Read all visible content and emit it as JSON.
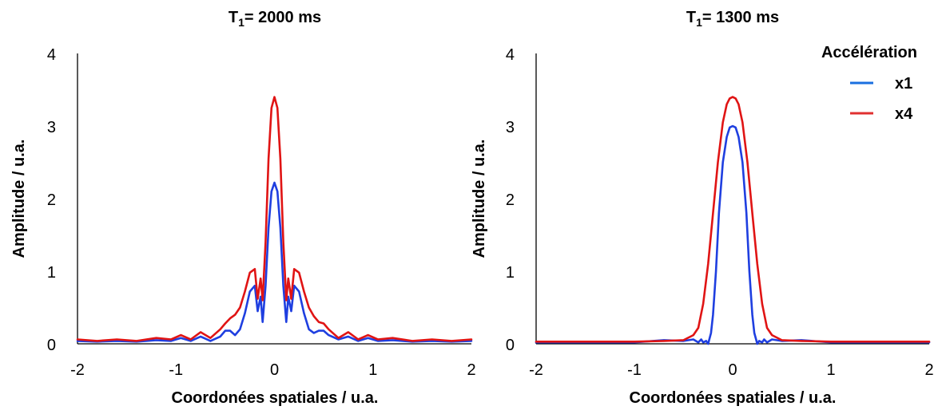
{
  "chart_data": [
    {
      "type": "line",
      "title_main": "T",
      "title_sub": "1",
      "title_rest": "= 2000 ms",
      "xlabel": "Coordonées spatiales / u.a.",
      "ylabel": "Amplitude / u.a.",
      "xlim": [
        -2,
        2
      ],
      "ylim": [
        0,
        4
      ],
      "xticks": [
        "-2",
        "-1",
        "0",
        "1",
        "2"
      ],
      "yticks": [
        "0",
        "1",
        "2",
        "3",
        "4"
      ],
      "grid": false,
      "series": [
        {
          "name": "x1",
          "color": "#1f3fe0",
          "x": [
            -2.0,
            -1.8,
            -1.6,
            -1.4,
            -1.2,
            -1.05,
            -0.95,
            -0.85,
            -0.75,
            -0.65,
            -0.55,
            -0.5,
            -0.45,
            -0.4,
            -0.35,
            -0.3,
            -0.25,
            -0.2,
            -0.17,
            -0.14,
            -0.12,
            -0.09,
            -0.06,
            -0.03,
            0.0,
            0.03,
            0.06,
            0.09,
            0.12,
            0.14,
            0.17,
            0.2,
            0.25,
            0.3,
            0.35,
            0.4,
            0.45,
            0.5,
            0.55,
            0.65,
            0.75,
            0.85,
            0.95,
            1.05,
            1.2,
            1.4,
            1.6,
            1.8,
            2.0
          ],
          "y": [
            0.04,
            0.03,
            0.04,
            0.03,
            0.05,
            0.04,
            0.08,
            0.04,
            0.1,
            0.04,
            0.1,
            0.18,
            0.18,
            0.12,
            0.2,
            0.42,
            0.72,
            0.8,
            0.45,
            0.65,
            0.3,
            0.8,
            1.6,
            2.1,
            2.22,
            2.1,
            1.6,
            0.8,
            0.3,
            0.65,
            0.45,
            0.8,
            0.72,
            0.42,
            0.2,
            0.15,
            0.18,
            0.18,
            0.12,
            0.06,
            0.1,
            0.04,
            0.08,
            0.04,
            0.05,
            0.03,
            0.04,
            0.03,
            0.04
          ]
        },
        {
          "name": "x4",
          "color": "#e01414",
          "x": [
            -2.0,
            -1.8,
            -1.6,
            -1.4,
            -1.2,
            -1.05,
            -0.95,
            -0.85,
            -0.75,
            -0.65,
            -0.55,
            -0.5,
            -0.45,
            -0.4,
            -0.35,
            -0.3,
            -0.25,
            -0.2,
            -0.17,
            -0.14,
            -0.12,
            -0.09,
            -0.06,
            -0.03,
            0.0,
            0.03,
            0.06,
            0.09,
            0.12,
            0.14,
            0.17,
            0.2,
            0.25,
            0.3,
            0.35,
            0.4,
            0.45,
            0.5,
            0.55,
            0.65,
            0.75,
            0.85,
            0.95,
            1.05,
            1.2,
            1.4,
            1.6,
            1.8,
            2.0
          ],
          "y": [
            0.06,
            0.04,
            0.06,
            0.04,
            0.08,
            0.06,
            0.12,
            0.06,
            0.16,
            0.08,
            0.2,
            0.28,
            0.35,
            0.4,
            0.5,
            0.72,
            0.98,
            1.03,
            0.62,
            0.9,
            0.6,
            1.4,
            2.55,
            3.25,
            3.4,
            3.25,
            2.55,
            1.4,
            0.6,
            0.9,
            0.62,
            1.03,
            0.98,
            0.72,
            0.5,
            0.38,
            0.3,
            0.28,
            0.2,
            0.08,
            0.16,
            0.06,
            0.12,
            0.06,
            0.08,
            0.04,
            0.06,
            0.04,
            0.06
          ]
        }
      ]
    },
    {
      "type": "line",
      "title_main": "T",
      "title_sub": "1",
      "title_rest": "= 1300 ms",
      "xlabel": "Coordonées spatiales / u.a.",
      "ylabel": "Amplitude / u.a.",
      "xlim": [
        -2,
        2
      ],
      "ylim": [
        0,
        4
      ],
      "xticks": [
        "-2",
        "-1",
        "0",
        "1",
        "2"
      ],
      "yticks": [
        "0",
        "1",
        "2",
        "3",
        "4"
      ],
      "grid": false,
      "legend": {
        "title": "Accélération",
        "placement": "top-right",
        "entries": [
          {
            "name": "x1",
            "color": "#1a6fe0"
          },
          {
            "name": "x4",
            "color": "#e03030"
          }
        ]
      },
      "series": [
        {
          "name": "x1",
          "color": "#1f3fe0",
          "x": [
            -2.0,
            -1.5,
            -1.0,
            -0.7,
            -0.5,
            -0.4,
            -0.35,
            -0.32,
            -0.3,
            -0.27,
            -0.25,
            -0.22,
            -0.2,
            -0.17,
            -0.14,
            -0.1,
            -0.06,
            -0.03,
            0.0,
            0.03,
            0.06,
            0.1,
            0.14,
            0.17,
            0.2,
            0.22,
            0.25,
            0.27,
            0.3,
            0.32,
            0.35,
            0.4,
            0.5,
            0.7,
            1.0,
            1.5,
            2.0
          ],
          "y": [
            0.02,
            0.02,
            0.02,
            0.05,
            0.04,
            0.06,
            0.02,
            0.06,
            0.02,
            0.04,
            0.0,
            0.15,
            0.4,
            1.0,
            1.8,
            2.5,
            2.85,
            2.98,
            3.0,
            2.98,
            2.85,
            2.5,
            1.8,
            1.0,
            0.4,
            0.15,
            0.0,
            0.04,
            0.02,
            0.06,
            0.02,
            0.06,
            0.04,
            0.05,
            0.02,
            0.02,
            0.02
          ]
        },
        {
          "name": "x4",
          "color": "#e01414",
          "x": [
            -2.0,
            -1.5,
            -1.0,
            -0.7,
            -0.5,
            -0.4,
            -0.35,
            -0.3,
            -0.25,
            -0.2,
            -0.15,
            -0.1,
            -0.06,
            -0.03,
            0.0,
            0.03,
            0.06,
            0.1,
            0.15,
            0.2,
            0.25,
            0.3,
            0.35,
            0.4,
            0.5,
            0.7,
            1.0,
            1.5,
            2.0
          ],
          "y": [
            0.03,
            0.03,
            0.03,
            0.04,
            0.05,
            0.12,
            0.22,
            0.55,
            1.1,
            1.8,
            2.5,
            3.05,
            3.3,
            3.38,
            3.4,
            3.38,
            3.3,
            3.05,
            2.5,
            1.8,
            1.1,
            0.55,
            0.22,
            0.12,
            0.05,
            0.04,
            0.03,
            0.03,
            0.03
          ]
        }
      ]
    }
  ]
}
